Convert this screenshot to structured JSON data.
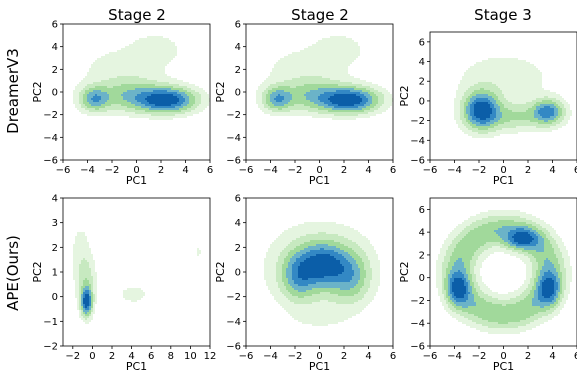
{
  "figure": {
    "row_labels": [
      "DreamerV3",
      "APE(Ours)"
    ],
    "column_titles": [
      "Stage 2",
      "Stage 2",
      "Stage 3"
    ]
  },
  "chart_data": [
    {
      "type": "contour",
      "row": "DreamerV3",
      "title": "Stage 2",
      "xlabel": "PC1",
      "ylabel": "PC2",
      "xlim": [
        -6,
        6
      ],
      "ylim": [
        -6,
        6
      ],
      "xticks": [
        -6,
        -4,
        -2,
        0,
        2,
        4,
        6
      ],
      "yticks": [
        -6,
        -4,
        -2,
        0,
        2,
        4,
        6
      ],
      "levels": 6,
      "density_components": [
        {
          "x": 2.4,
          "y": -0.7,
          "sx": 1.5,
          "sy": 0.7,
          "w": 1.0
        },
        {
          "x": -3.4,
          "y": -0.6,
          "sx": 0.8,
          "sy": 0.7,
          "w": 0.55
        },
        {
          "x": -0.6,
          "y": -0.3,
          "sx": 1.6,
          "sy": 0.9,
          "w": 0.35
        },
        {
          "x": 1.6,
          "y": 3.8,
          "sx": 1.2,
          "sy": 0.8,
          "w": 0.12
        },
        {
          "x": -1.0,
          "y": 1.8,
          "sx": 2.5,
          "sy": 1.6,
          "w": 0.1
        }
      ]
    },
    {
      "type": "contour",
      "row": "DreamerV3",
      "title": "Stage 2",
      "xlabel": "PC1",
      "ylabel": "PC2",
      "xlim": [
        -6,
        6
      ],
      "ylim": [
        -6,
        6
      ],
      "xticks": [
        -6,
        -4,
        -2,
        0,
        2,
        4,
        6
      ],
      "yticks": [
        -6,
        -4,
        -2,
        0,
        2,
        4,
        6
      ],
      "levels": 6,
      "density_components": [
        {
          "x": 2.4,
          "y": -0.7,
          "sx": 1.5,
          "sy": 0.7,
          "w": 1.0
        },
        {
          "x": -3.4,
          "y": -0.6,
          "sx": 0.8,
          "sy": 0.7,
          "w": 0.55
        },
        {
          "x": -0.6,
          "y": -0.3,
          "sx": 1.6,
          "sy": 0.9,
          "w": 0.35
        },
        {
          "x": 1.6,
          "y": 3.8,
          "sx": 1.2,
          "sy": 0.8,
          "w": 0.12
        },
        {
          "x": -1.0,
          "y": 1.8,
          "sx": 2.5,
          "sy": 1.6,
          "w": 0.1
        }
      ]
    },
    {
      "type": "contour",
      "row": "DreamerV3",
      "title": "Stage 3",
      "xlabel": "PC1",
      "ylabel": "PC2",
      "xlim": [
        -6,
        6
      ],
      "ylim": [
        -6,
        7
      ],
      "xticks": [
        -6,
        -4,
        -2,
        0,
        2,
        4,
        6
      ],
      "yticks": [
        -6,
        -4,
        -2,
        0,
        2,
        4,
        6
      ],
      "levels": 6,
      "density_components": [
        {
          "x": -1.8,
          "y": -0.9,
          "sx": 0.9,
          "sy": 1.2,
          "w": 1.0
        },
        {
          "x": 3.6,
          "y": -1.1,
          "sx": 0.8,
          "sy": 0.8,
          "w": 0.7
        },
        {
          "x": 0.8,
          "y": -1.6,
          "sx": 2.0,
          "sy": 0.9,
          "w": 0.3
        },
        {
          "x": 0.0,
          "y": 2.2,
          "sx": 2.6,
          "sy": 1.8,
          "w": 0.12
        }
      ]
    },
    {
      "type": "contour",
      "row": "APE(Ours)",
      "title": "",
      "xlabel": "PC1",
      "ylabel": "PC2",
      "xlim": [
        -3,
        12
      ],
      "ylim": [
        -2,
        4
      ],
      "xticks": [
        -2,
        0,
        2,
        4,
        6,
        8,
        10,
        12
      ],
      "yticks": [
        -2,
        -1,
        0,
        1,
        2,
        3,
        4
      ],
      "levels": 6,
      "density_components": [
        {
          "x": -0.6,
          "y": -0.2,
          "sx": 0.35,
          "sy": 0.35,
          "w": 1.0
        },
        {
          "x": -0.6,
          "y": 0.5,
          "sx": 0.6,
          "sy": 0.7,
          "w": 0.25
        },
        {
          "x": -1.2,
          "y": 1.7,
          "sx": 0.7,
          "sy": 0.9,
          "w": 0.1
        },
        {
          "x": 4.2,
          "y": 0.1,
          "sx": 1.4,
          "sy": 0.35,
          "w": 0.08
        },
        {
          "x": 10.8,
          "y": 1.8,
          "sx": 0.2,
          "sy": 0.18,
          "w": 0.1
        }
      ]
    },
    {
      "type": "contour",
      "row": "APE(Ours)",
      "title": "",
      "xlabel": "PC1",
      "ylabel": "PC2",
      "xlim": [
        -6,
        6
      ],
      "ylim": [
        -6,
        6
      ],
      "xticks": [
        -6,
        -4,
        -2,
        0,
        2,
        4,
        6
      ],
      "yticks": [
        -6,
        -4,
        -2,
        0,
        2,
        4,
        6
      ],
      "levels": 6,
      "density_components": [
        {
          "x": 0.3,
          "y": 0.6,
          "sx": 1.3,
          "sy": 1.1,
          "w": 1.0
        },
        {
          "x": -1.7,
          "y": -0.3,
          "sx": 0.9,
          "sy": 1.2,
          "w": 0.6
        },
        {
          "x": 2.5,
          "y": -0.4,
          "sx": 1.0,
          "sy": 1.3,
          "w": 0.5
        },
        {
          "x": 0.0,
          "y": 0.4,
          "sx": 2.6,
          "sy": 2.1,
          "w": 0.3
        },
        {
          "x": 0.0,
          "y": -3.8,
          "sx": 1.8,
          "sy": 0.7,
          "w": 0.06
        }
      ]
    },
    {
      "type": "contour",
      "row": "APE(Ours)",
      "title": "",
      "xlabel": "PC1",
      "ylabel": "PC2",
      "xlim": [
        -6,
        6
      ],
      "ylim": [
        -6,
        7
      ],
      "xticks": [
        -6,
        -4,
        -2,
        0,
        2,
        4,
        6
      ],
      "yticks": [
        -6,
        -4,
        -2,
        0,
        2,
        4,
        6
      ],
      "levels": 6,
      "density_components": [
        {
          "x": 1.5,
          "y": 3.4,
          "sx": 0.9,
          "sy": 0.6,
          "w": 0.9
        },
        {
          "x": -3.7,
          "y": -1.0,
          "sx": 0.6,
          "sy": 1.0,
          "w": 0.9
        },
        {
          "x": 3.7,
          "y": -1.0,
          "sx": 0.6,
          "sy": 1.0,
          "w": 0.9
        },
        {
          "x": 0.0,
          "y": 0.5,
          "ring_radius": 3.7,
          "ring_width": 0.9,
          "w": 0.55
        }
      ]
    }
  ],
  "colors": {
    "levels": [
      "#e5f5e0",
      "#c7e9c0",
      "#a1d99b",
      "#6bb3c8",
      "#3388c4",
      "#0b5ea8"
    ],
    "axis": "#000000",
    "plot_background": "#ffffff"
  }
}
